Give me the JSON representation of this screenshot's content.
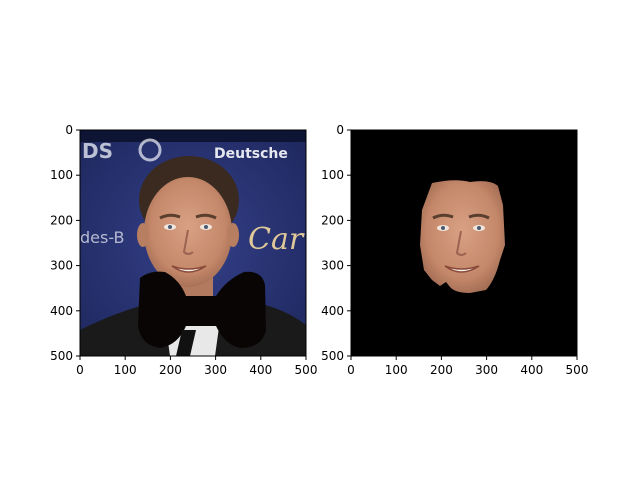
{
  "chart_data": [
    {
      "type": "image",
      "title": "",
      "xlim": [
        0,
        500
      ],
      "ylim": [
        500,
        0
      ],
      "x_ticks": [
        "0",
        "100",
        "200",
        "300",
        "400",
        "500"
      ],
      "y_ticks": [
        "0",
        "100",
        "200",
        "300",
        "400",
        "500"
      ],
      "content": "portrait photo with black bow-tie shaped mask over lower face/neck",
      "visible_text": [
        "Deutsche",
        "Car"
      ],
      "colors": {
        "background": "#2a3470",
        "mask": "#0a0505",
        "skin": "#c98f73",
        "hair": "#3a2a20"
      }
    },
    {
      "type": "image",
      "title": "",
      "xlim": [
        0,
        500
      ],
      "ylim": [
        500,
        0
      ],
      "x_ticks": [
        "0",
        "100",
        "200",
        "300",
        "400",
        "500"
      ],
      "y_ticks": [
        "0",
        "100",
        "200",
        "300",
        "400",
        "500"
      ],
      "content": "segmented face region on black background",
      "colors": {
        "background": "#000000",
        "skin": "#c98f73"
      }
    }
  ]
}
